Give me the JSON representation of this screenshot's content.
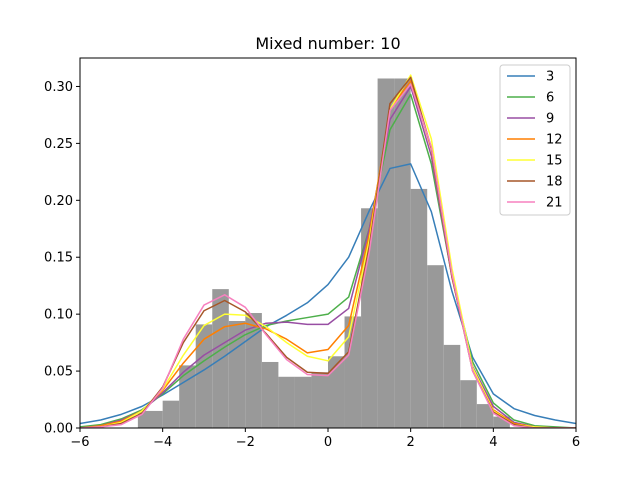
{
  "chart_data": {
    "type": "line",
    "title": "Mixed number: 10",
    "xlabel": "",
    "ylabel": "",
    "xlim": [
      -6,
      6
    ],
    "ylim": [
      0,
      0.325
    ],
    "xticks": [
      -6,
      -4,
      -2,
      0,
      2,
      4,
      6
    ],
    "xtick_labels": [
      "−6",
      "−4",
      "−2",
      "0",
      "2",
      "4",
      "6"
    ],
    "yticks": [
      0.0,
      0.05,
      0.1,
      0.15,
      0.2,
      0.25,
      0.3
    ],
    "ytick_labels": [
      "0.00",
      "0.05",
      "0.10",
      "0.15",
      "0.20",
      "0.25",
      "0.30"
    ],
    "grid": false,
    "legend_placement": "top-right",
    "histogram": {
      "color": "#999999",
      "bin_edges": [
        -4.6,
        -4.0,
        -3.6,
        -3.2,
        -2.8,
        -2.4,
        -2.0,
        -1.6,
        -1.2,
        -0.8,
        -0.4,
        0.0,
        0.4,
        0.8,
        1.2,
        1.6,
        2.0,
        2.4,
        2.8,
        3.2,
        3.6,
        4.0,
        4.4,
        4.8
      ],
      "heights": [
        0.015,
        0.024,
        0.055,
        0.091,
        0.122,
        0.094,
        0.101,
        0.058,
        0.045,
        0.045,
        0.049,
        0.063,
        0.098,
        0.193,
        0.307,
        0.307,
        0.21,
        0.143,
        0.073,
        0.042,
        0.021,
        0.01,
        0.0
      ]
    },
    "x": [
      -6,
      -5.5,
      -5,
      -4.5,
      -4,
      -3.5,
      -3,
      -2.5,
      -2,
      -1.5,
      -1,
      -0.5,
      0,
      0.5,
      1,
      1.5,
      2,
      2.5,
      3,
      3.5,
      4,
      4.5,
      5,
      5.5,
      6
    ],
    "series": [
      {
        "name": "3",
        "color": "#377eb8",
        "values": [
          0.004,
          0.007,
          0.012,
          0.019,
          0.029,
          0.04,
          0.051,
          0.063,
          0.076,
          0.089,
          0.099,
          0.11,
          0.126,
          0.15,
          0.191,
          0.228,
          0.232,
          0.19,
          0.12,
          0.062,
          0.03,
          0.017,
          0.011,
          0.007,
          0.004
        ]
      },
      {
        "name": "6",
        "color": "#4daf4a",
        "values": [
          0.001,
          0.003,
          0.008,
          0.016,
          0.03,
          0.046,
          0.059,
          0.071,
          0.082,
          0.09,
          0.094,
          0.097,
          0.1,
          0.115,
          0.175,
          0.262,
          0.293,
          0.232,
          0.133,
          0.058,
          0.022,
          0.007,
          0.002,
          0.001,
          0.0
        ]
      },
      {
        "name": "9",
        "color": "#984ea3",
        "values": [
          0.0,
          0.002,
          0.007,
          0.015,
          0.031,
          0.049,
          0.064,
          0.075,
          0.086,
          0.092,
          0.093,
          0.091,
          0.091,
          0.105,
          0.175,
          0.271,
          0.3,
          0.239,
          0.132,
          0.054,
          0.019,
          0.005,
          0.001,
          0.0,
          0.0
        ]
      },
      {
        "name": "12",
        "color": "#ff7f00",
        "values": [
          0.0,
          0.002,
          0.006,
          0.015,
          0.033,
          0.057,
          0.078,
          0.089,
          0.092,
          0.087,
          0.078,
          0.066,
          0.069,
          0.09,
          0.17,
          0.28,
          0.305,
          0.245,
          0.133,
          0.052,
          0.016,
          0.004,
          0.001,
          0.0,
          0.0
        ]
      },
      {
        "name": "15",
        "color": "#ffff33",
        "values": [
          0.0,
          0.001,
          0.005,
          0.015,
          0.034,
          0.064,
          0.09,
          0.1,
          0.099,
          0.089,
          0.075,
          0.063,
          0.059,
          0.08,
          0.165,
          0.28,
          0.31,
          0.254,
          0.14,
          0.053,
          0.015,
          0.003,
          0.001,
          0.0,
          0.0
        ]
      },
      {
        "name": "18",
        "color": "#a65628",
        "values": [
          0.0,
          0.001,
          0.004,
          0.013,
          0.036,
          0.075,
          0.103,
          0.112,
          0.102,
          0.083,
          0.062,
          0.049,
          0.048,
          0.067,
          0.16,
          0.285,
          0.308,
          0.246,
          0.133,
          0.05,
          0.014,
          0.003,
          0.0,
          0.0,
          0.0
        ]
      },
      {
        "name": "21",
        "color": "#f781bf",
        "values": [
          0.0,
          0.001,
          0.003,
          0.012,
          0.035,
          0.078,
          0.108,
          0.117,
          0.106,
          0.082,
          0.06,
          0.047,
          0.046,
          0.064,
          0.155,
          0.279,
          0.302,
          0.247,
          0.135,
          0.05,
          0.013,
          0.002,
          0.0,
          0.0,
          0.0
        ]
      }
    ]
  }
}
